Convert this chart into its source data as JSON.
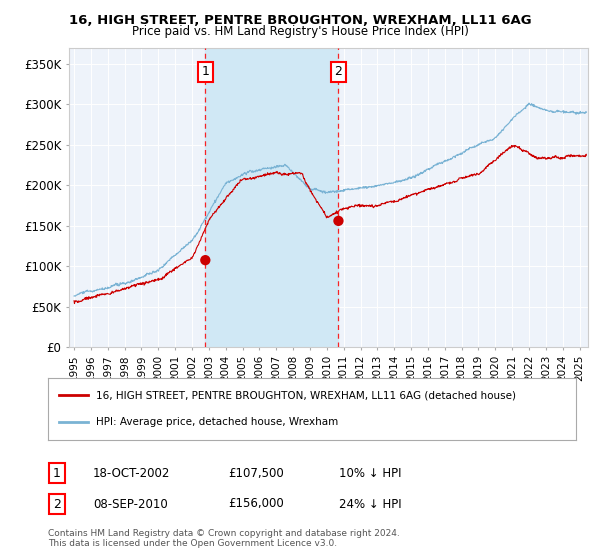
{
  "title1": "16, HIGH STREET, PENTRE BROUGHTON, WREXHAM, LL11 6AG",
  "title2": "Price paid vs. HM Land Registry's House Price Index (HPI)",
  "ylabel_ticks": [
    "£0",
    "£50K",
    "£100K",
    "£150K",
    "£200K",
    "£250K",
    "£300K",
    "£350K"
  ],
  "ytick_values": [
    0,
    50000,
    100000,
    150000,
    200000,
    250000,
    300000,
    350000
  ],
  "ylim": [
    0,
    370000
  ],
  "xlim_start": 1994.7,
  "xlim_end": 2025.5,
  "hpi_color": "#7ab3d4",
  "hpi_fill_color": "#d0e8f5",
  "price_color": "#cc0000",
  "transaction1_date": 2002.79,
  "transaction1_price": 107500,
  "transaction2_date": 2010.69,
  "transaction2_price": 156000,
  "legend1": "16, HIGH STREET, PENTRE BROUGHTON, WREXHAM, LL11 6AG (detached house)",
  "legend2": "HPI: Average price, detached house, Wrexham",
  "ann1_label": "18-OCT-2002",
  "ann1_price": "£107,500",
  "ann1_hpi": "10% ↓ HPI",
  "ann2_label": "08-SEP-2010",
  "ann2_price": "£156,000",
  "ann2_hpi": "24% ↓ HPI",
  "footer": "Contains HM Land Registry data © Crown copyright and database right 2024.\nThis data is licensed under the Open Government Licence v3.0.",
  "bg_color": "#eef3fa",
  "grid_color": "#ffffff",
  "num_points": 1200
}
